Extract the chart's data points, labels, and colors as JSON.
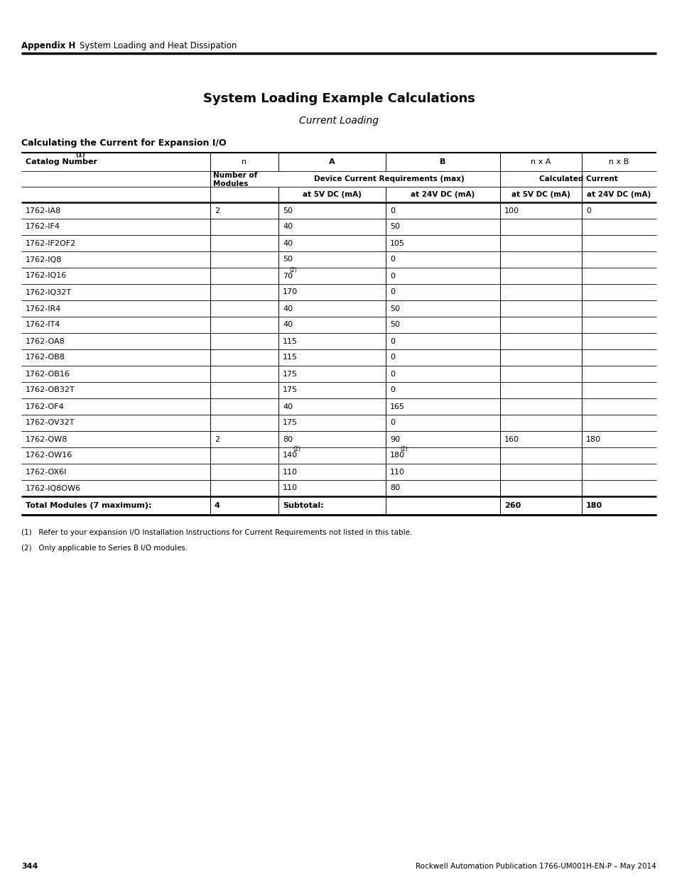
{
  "page_title": "System Loading Example Calculations",
  "subtitle": "Current Loading",
  "section_title": "Calculating the Current for Expansion I/O",
  "rows": [
    [
      "1762-IA8",
      "2",
      "50",
      "0",
      "100",
      "0"
    ],
    [
      "1762-IF4",
      "",
      "40",
      "50",
      "",
      ""
    ],
    [
      "1762-IF2OF2",
      "",
      "40",
      "105",
      "",
      ""
    ],
    [
      "1762-IQ8",
      "",
      "50",
      "0",
      "",
      ""
    ],
    [
      "1762-IQ16",
      "",
      "70(2)",
      "0",
      "",
      ""
    ],
    [
      "1762-IQ32T",
      "",
      "170",
      "0",
      "",
      ""
    ],
    [
      "1762-IR4",
      "",
      "40",
      "50",
      "",
      ""
    ],
    [
      "1762-IT4",
      "",
      "40",
      "50",
      "",
      ""
    ],
    [
      "1762-OA8",
      "",
      "115",
      "0",
      "",
      ""
    ],
    [
      "1762-OB8",
      "",
      "115",
      "0",
      "",
      ""
    ],
    [
      "1762-OB16",
      "",
      "175",
      "0",
      "",
      ""
    ],
    [
      "1762-OB32T",
      "",
      "175",
      "0",
      "",
      ""
    ],
    [
      "1762-OF4",
      "",
      "40",
      "165",
      "",
      ""
    ],
    [
      "1762-OV32T",
      "",
      "175",
      "0",
      "",
      ""
    ],
    [
      "1762-OW8",
      "2",
      "80",
      "90",
      "160",
      "180"
    ],
    [
      "1762-OW16",
      "",
      "140(2)",
      "180(2)",
      "",
      ""
    ],
    [
      "1762-OX6I",
      "",
      "110",
      "110",
      "",
      ""
    ],
    [
      "1762-IQ8OW6",
      "",
      "110",
      "80",
      "",
      ""
    ]
  ],
  "rows_superscript": [
    [
      false,
      false,
      false,
      false,
      false,
      false
    ],
    [
      false,
      false,
      false,
      false,
      false,
      false
    ],
    [
      false,
      false,
      false,
      false,
      false,
      false
    ],
    [
      false,
      false,
      false,
      false,
      false,
      false
    ],
    [
      false,
      false,
      true,
      false,
      false,
      false
    ],
    [
      false,
      false,
      false,
      false,
      false,
      false
    ],
    [
      false,
      false,
      false,
      false,
      false,
      false
    ],
    [
      false,
      false,
      false,
      false,
      false,
      false
    ],
    [
      false,
      false,
      false,
      false,
      false,
      false
    ],
    [
      false,
      false,
      false,
      false,
      false,
      false
    ],
    [
      false,
      false,
      false,
      false,
      false,
      false
    ],
    [
      false,
      false,
      false,
      false,
      false,
      false
    ],
    [
      false,
      false,
      false,
      false,
      false,
      false
    ],
    [
      false,
      false,
      false,
      false,
      false,
      false
    ],
    [
      false,
      false,
      false,
      false,
      false,
      false
    ],
    [
      false,
      false,
      true,
      true,
      false,
      false
    ],
    [
      false,
      false,
      false,
      false,
      false,
      false
    ],
    [
      false,
      false,
      false,
      false,
      false,
      false
    ]
  ],
  "footer_row": [
    "Total Modules (7 maximum):",
    "4",
    "Subtotal:",
    "",
    "260",
    "180"
  ],
  "footnote1": "(1)   Refer to your expansion I/O Installation Instructions for Current Requirements not listed in this table.",
  "footnote2": "(2)   Only applicable to Series B I/O modules.",
  "appendix_label": "Appendix H",
  "appendix_text": "System Loading and Heat Dissipation",
  "page_number": "344",
  "footer_text": "Rockwell Automation Publication 1766-UM001H-EN-P – May 2014"
}
